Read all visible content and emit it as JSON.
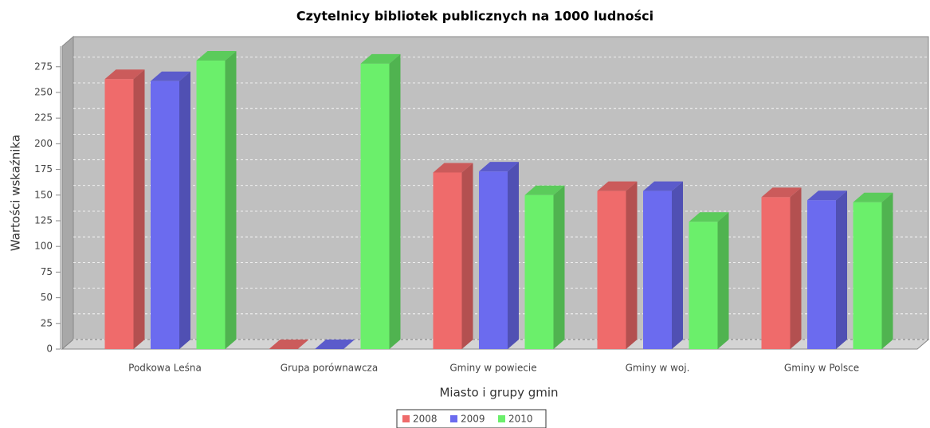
{
  "chart_data": {
    "type": "bar3d",
    "title": "Czytelnicy bibliotek publicznych na 1000 ludności",
    "x_label": "Miasto i grupy gmin",
    "y_label": "Wartości wskaźnika",
    "categories": [
      "Podkowa Leśna",
      "Grupa porównawcza",
      "Gminy w powiecie",
      "Gminy w woj.",
      "Gminy w Polsce"
    ],
    "series": [
      {
        "name": "2008",
        "color": "#ef6b6b",
        "values": [
          263,
          0,
          172,
          154,
          148
        ]
      },
      {
        "name": "2009",
        "color": "#6b6bef",
        "values": [
          261,
          0,
          173,
          154,
          145
        ]
      },
      {
        "name": "2010",
        "color": "#6bef6b",
        "values": [
          281,
          278,
          150,
          124,
          143
        ]
      }
    ],
    "ylim": [
      0,
      295
    ],
    "yticks": [
      0,
      25,
      50,
      75,
      100,
      125,
      150,
      175,
      200,
      225,
      250,
      275
    ],
    "grid": true
  }
}
